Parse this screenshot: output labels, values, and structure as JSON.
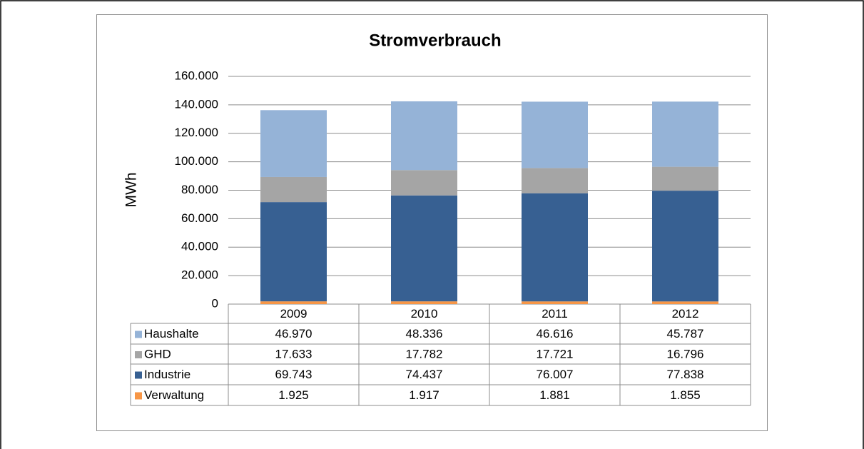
{
  "chart_data": {
    "type": "stacked_bar",
    "title": "Stromverbrauch",
    "y_label": "MWh",
    "categories": [
      "2009",
      "2010",
      "2011",
      "2012"
    ],
    "series": [
      {
        "name": "Haushalte",
        "color": "#95b3d7",
        "values": [
          46970,
          48336,
          46616,
          45787
        ],
        "value_labels": [
          "46.970",
          "48.336",
          "46.616",
          "45.787"
        ]
      },
      {
        "name": "GHD",
        "color": "#a5a5a5",
        "values": [
          17633,
          17782,
          17721,
          16796
        ],
        "value_labels": [
          "17.633",
          "17.782",
          "17.721",
          "16.796"
        ]
      },
      {
        "name": "Industrie",
        "color": "#376092",
        "values": [
          69743,
          74437,
          76007,
          77838
        ],
        "value_labels": [
          "69.743",
          "74.437",
          "76.007",
          "77.838"
        ]
      },
      {
        "name": "Verwaltung",
        "color": "#f79646",
        "values": [
          1925,
          1917,
          1881,
          1855
        ],
        "value_labels": [
          "1.925",
          "1.917",
          "1.881",
          "1.855"
        ]
      }
    ],
    "ylim": [
      0,
      160000
    ],
    "yticks": [
      0,
      {
        "value": 20000,
        "label": "20.000"
      },
      {
        "value": 40000,
        "label": "40.000"
      },
      {
        "value": 60000,
        "label": "60.000"
      },
      {
        "value": 80000,
        "label": "80.000"
      },
      {
        "value": 100000,
        "label": "100.000"
      },
      {
        "value": 120000,
        "label": "120.000"
      },
      {
        "value": 140000,
        "label": "140.000"
      },
      {
        "value": 160000,
        "label": "160.000"
      }
    ],
    "grid": true
  }
}
